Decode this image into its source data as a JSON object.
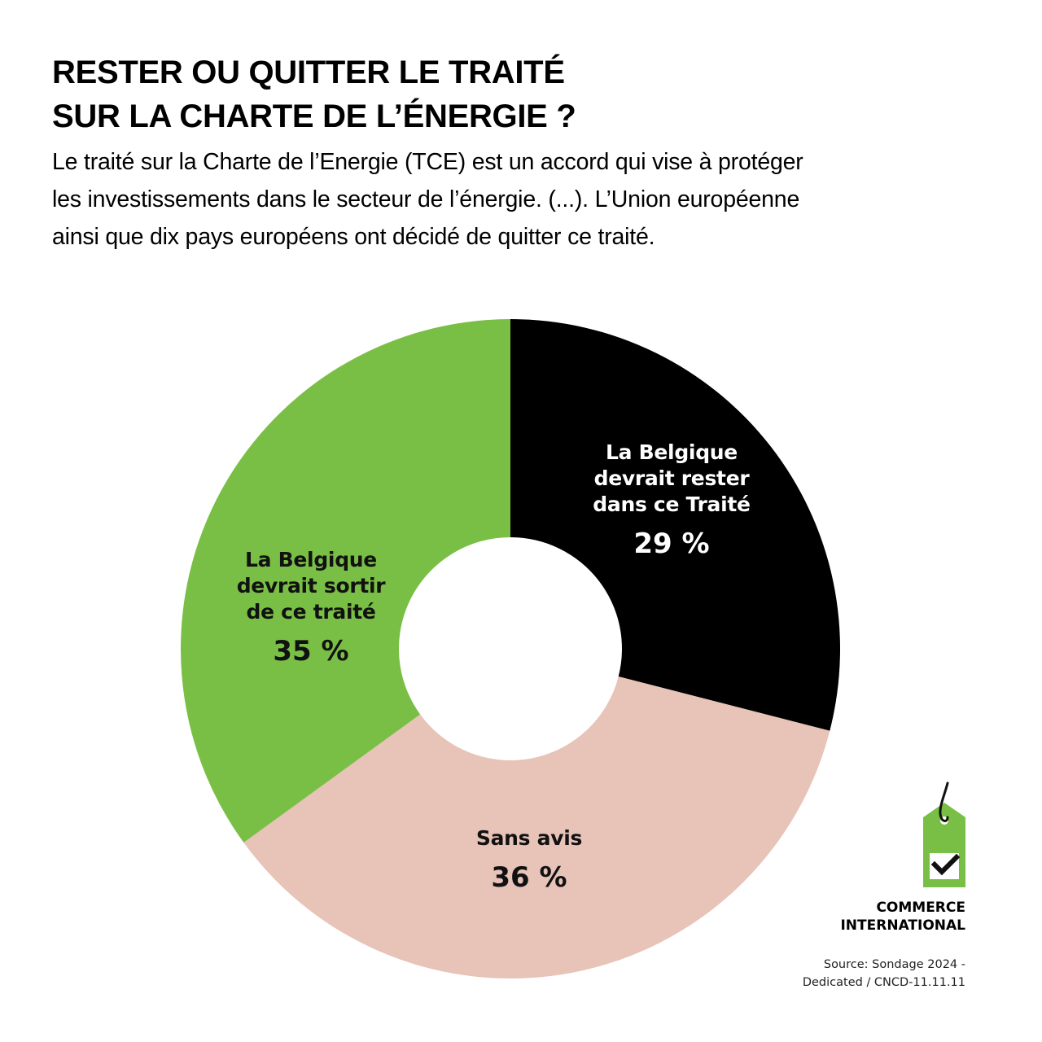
{
  "header": {
    "title_lines": [
      "RESTER OU QUITTER LE TRAITÉ",
      "SUR LA CHARTE DE L’ÉNERGIE ?"
    ],
    "description_lines": [
      "Le traité sur la Charte de l’Energie (TCE) est un accord qui vise à protéger",
      "les investissements dans le secteur de l’énergie. (...). L’Union européenne",
      "ainsi que dix pays européens ont décidé de quitter ce traité."
    ]
  },
  "slices": [
    {
      "label_lines": [
        "La Belgique",
        "devrait rester",
        "dans ce Traité"
      ],
      "percent": "29 %",
      "value": 29,
      "color": "#000000",
      "text_color": "#ffffff"
    },
    {
      "label_lines": [
        "Sans avis"
      ],
      "percent": "36 %",
      "value": 36,
      "color": "#e7c3b8",
      "text_color": "#111111"
    },
    {
      "label_lines": [
        "La Belgique",
        "devrait sortir",
        "de ce traité"
      ],
      "percent": "35 %",
      "value": 35,
      "color": "#7abf45",
      "text_color": "#111111"
    }
  ],
  "brand": {
    "logo_icon": "price-tag-checkmark-icon",
    "name_lines": [
      "COMMERCE",
      "INTERNATIONAL"
    ],
    "accent_color": "#7abf45"
  },
  "source": {
    "lines": [
      "Source: Sondage 2024 -",
      "Dedicated /  CNCD-11.11.11"
    ]
  },
  "chart_data": {
    "type": "pie",
    "subtype": "donut",
    "title": "RESTER OU QUITTER LE TRAITÉ SUR LA CHARTE DE L’ÉNERGIE ?",
    "categories": [
      "La Belgique devrait rester dans ce Traité",
      "Sans avis",
      "La Belgique devrait sortir de ce traité"
    ],
    "values": [
      29,
      36,
      35
    ],
    "unit": "%",
    "colors": [
      "#000000",
      "#e7c3b8",
      "#7abf45"
    ],
    "start_angle": "12 o'clock, clockwise",
    "legend": "none (labels inside slices)",
    "source": "Sondage 2024 - Dedicated / CNCD-11.11.11"
  }
}
